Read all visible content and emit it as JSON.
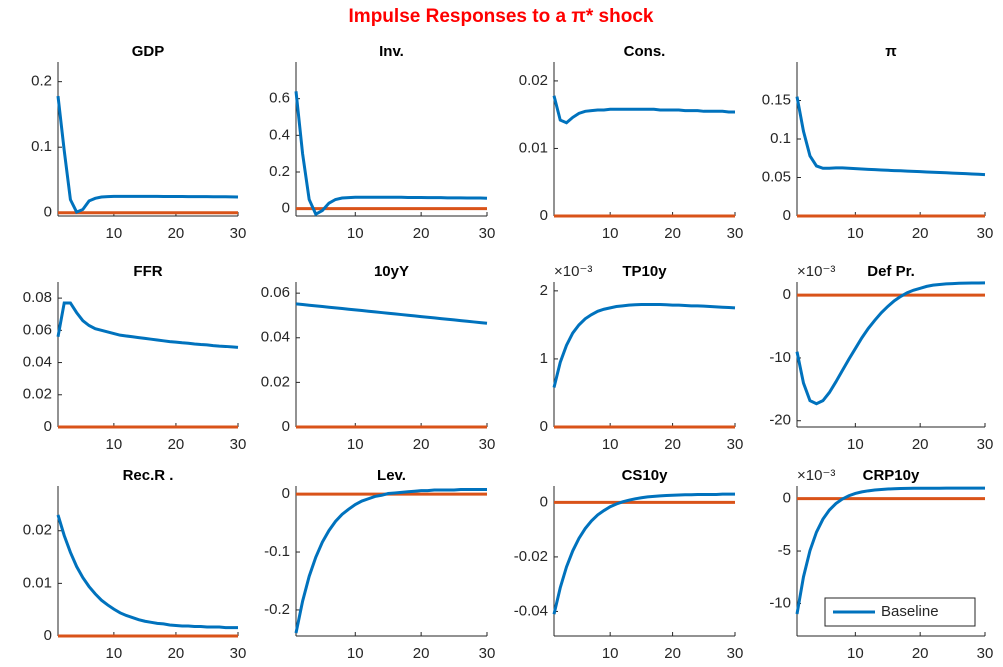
{
  "title": "Impulse Responses to a π* shock",
  "chart_data": [
    {
      "type": "line",
      "title": "GDP",
      "x": [
        1,
        2,
        3,
        4,
        5,
        6,
        7,
        8,
        9,
        10,
        11,
        12,
        13,
        14,
        15,
        16,
        17,
        18,
        19,
        20,
        21,
        22,
        23,
        24,
        25,
        26,
        27,
        28,
        29,
        30
      ],
      "xlim": [
        1,
        30
      ],
      "xticks": [
        10,
        20,
        30
      ],
      "ylim": [
        -0.005,
        0.23
      ],
      "yticks": [
        0,
        0.1,
        0.2
      ],
      "hline": {
        "value": 0,
        "color": "#D95319"
      },
      "series": [
        {
          "color": "#0072BD",
          "values": [
            0.178,
            0.095,
            0.02,
            0.001,
            0.005,
            0.018,
            0.022,
            0.024,
            0.0245,
            0.025,
            0.025,
            0.025,
            0.025,
            0.025,
            0.025,
            0.025,
            0.025,
            0.0248,
            0.0248,
            0.0247,
            0.0247,
            0.0246,
            0.0246,
            0.0245,
            0.0245,
            0.0244,
            0.0244,
            0.0243,
            0.0242,
            0.024
          ]
        }
      ]
    },
    {
      "type": "line",
      "title": "Inv.",
      "x": [
        1,
        2,
        3,
        4,
        5,
        6,
        7,
        8,
        9,
        10,
        11,
        12,
        13,
        14,
        15,
        16,
        17,
        18,
        19,
        20,
        21,
        22,
        23,
        24,
        25,
        26,
        27,
        28,
        29,
        30
      ],
      "xlim": [
        1,
        30
      ],
      "xticks": [
        10,
        20,
        30
      ],
      "ylim": [
        -0.04,
        0.8
      ],
      "yticks": [
        0,
        0.2,
        0.4,
        0.6
      ],
      "hline": {
        "value": 0,
        "color": "#D95319"
      },
      "series": [
        {
          "color": "#0072BD",
          "values": [
            0.64,
            0.3,
            0.05,
            -0.03,
            -0.01,
            0.03,
            0.05,
            0.058,
            0.06,
            0.062,
            0.062,
            0.062,
            0.062,
            0.062,
            0.062,
            0.062,
            0.062,
            0.061,
            0.061,
            0.061,
            0.06,
            0.06,
            0.06,
            0.059,
            0.059,
            0.059,
            0.058,
            0.058,
            0.058,
            0.057
          ]
        }
      ]
    },
    {
      "type": "line",
      "title": "Cons.",
      "x": [
        1,
        2,
        3,
        4,
        5,
        6,
        7,
        8,
        9,
        10,
        11,
        12,
        13,
        14,
        15,
        16,
        17,
        18,
        19,
        20,
        21,
        22,
        23,
        24,
        25,
        26,
        27,
        28,
        29,
        30
      ],
      "xlim": [
        1,
        30
      ],
      "xticks": [
        10,
        20,
        30
      ],
      "ylim": [
        0,
        0.0228
      ],
      "yticks": [
        0,
        0.01,
        0.02
      ],
      "hline": {
        "value": 0,
        "color": "#D95319"
      },
      "series": [
        {
          "color": "#0072BD",
          "values": [
            0.0178,
            0.0142,
            0.0138,
            0.0146,
            0.0152,
            0.0155,
            0.0156,
            0.0157,
            0.0157,
            0.0158,
            0.0158,
            0.0158,
            0.0158,
            0.0158,
            0.0158,
            0.0158,
            0.0158,
            0.0157,
            0.0157,
            0.0157,
            0.0157,
            0.0156,
            0.0156,
            0.0156,
            0.0155,
            0.0155,
            0.0155,
            0.0155,
            0.0154,
            0.0154
          ]
        }
      ]
    },
    {
      "type": "line",
      "title": "π",
      "x": [
        1,
        2,
        3,
        4,
        5,
        6,
        7,
        8,
        9,
        10,
        11,
        12,
        13,
        14,
        15,
        16,
        17,
        18,
        19,
        20,
        21,
        22,
        23,
        24,
        25,
        26,
        27,
        28,
        29,
        30
      ],
      "xlim": [
        1,
        30
      ],
      "xticks": [
        10,
        20,
        30
      ],
      "ylim": [
        0,
        0.2
      ],
      "yticks": [
        0,
        0.05,
        0.1,
        0.15
      ],
      "hline": {
        "value": 0,
        "color": "#D95319"
      },
      "series": [
        {
          "color": "#0072BD",
          "values": [
            0.155,
            0.11,
            0.078,
            0.065,
            0.062,
            0.062,
            0.0625,
            0.0625,
            0.062,
            0.0615,
            0.061,
            0.0606,
            0.0602,
            0.0598,
            0.0594,
            0.059,
            0.0587,
            0.0583,
            0.058,
            0.0576,
            0.0572,
            0.0568,
            0.0565,
            0.0561,
            0.0557,
            0.0553,
            0.055,
            0.0546,
            0.0542,
            0.0538
          ]
        }
      ]
    },
    {
      "type": "line",
      "title": "FFR",
      "x": [
        1,
        2,
        3,
        4,
        5,
        6,
        7,
        8,
        9,
        10,
        11,
        12,
        13,
        14,
        15,
        16,
        17,
        18,
        19,
        20,
        21,
        22,
        23,
        24,
        25,
        26,
        27,
        28,
        29,
        30
      ],
      "xlim": [
        1,
        30
      ],
      "xticks": [
        10,
        20,
        30
      ],
      "ylim": [
        0,
        0.09
      ],
      "yticks": [
        0,
        0.02,
        0.04,
        0.06,
        0.08
      ],
      "hline": {
        "value": 0,
        "color": "#D95319"
      },
      "series": [
        {
          "color": "#0072BD",
          "values": [
            0.056,
            0.077,
            0.077,
            0.071,
            0.066,
            0.063,
            0.061,
            0.06,
            0.059,
            0.058,
            0.057,
            0.0565,
            0.056,
            0.0555,
            0.055,
            0.0545,
            0.054,
            0.0535,
            0.053,
            0.0527,
            0.0523,
            0.052,
            0.0515,
            0.0512,
            0.051,
            0.0505,
            0.0502,
            0.05,
            0.0497,
            0.0494
          ]
        }
      ]
    },
    {
      "type": "line",
      "title": "10yY",
      "x": [
        1,
        2,
        3,
        4,
        5,
        6,
        7,
        8,
        9,
        10,
        11,
        12,
        13,
        14,
        15,
        16,
        17,
        18,
        19,
        20,
        21,
        22,
        23,
        24,
        25,
        26,
        27,
        28,
        29,
        30
      ],
      "xlim": [
        1,
        30
      ],
      "xticks": [
        10,
        20,
        30
      ],
      "ylim": [
        0,
        0.065
      ],
      "yticks": [
        0,
        0.02,
        0.04,
        0.06
      ],
      "hline": {
        "value": 0,
        "color": "#D95319"
      },
      "series": [
        {
          "color": "#0072BD",
          "values": [
            0.0552,
            0.0549,
            0.0546,
            0.0543,
            0.054,
            0.0537,
            0.0534,
            0.0531,
            0.0528,
            0.0525,
            0.0522,
            0.0519,
            0.0516,
            0.0513,
            0.051,
            0.0507,
            0.0504,
            0.0501,
            0.0498,
            0.0495,
            0.0492,
            0.0489,
            0.0486,
            0.0483,
            0.048,
            0.0477,
            0.0474,
            0.0471,
            0.0468,
            0.0465
          ]
        }
      ]
    },
    {
      "type": "line",
      "title": "TP10y",
      "y_multiplier_label": "×10⁻³",
      "x": [
        1,
        2,
        3,
        4,
        5,
        6,
        7,
        8,
        9,
        10,
        11,
        12,
        13,
        14,
        15,
        16,
        17,
        18,
        19,
        20,
        21,
        22,
        23,
        24,
        25,
        26,
        27,
        28,
        29,
        30
      ],
      "xlim": [
        1,
        30
      ],
      "xticks": [
        10,
        20,
        30
      ],
      "ylim": [
        0,
        2.13
      ],
      "yticks": [
        0,
        1,
        2
      ],
      "hline": {
        "value": 0,
        "color": "#D95319"
      },
      "series": [
        {
          "color": "#0072BD",
          "values": [
            0.58,
            0.95,
            1.2,
            1.38,
            1.5,
            1.59,
            1.65,
            1.7,
            1.73,
            1.75,
            1.77,
            1.78,
            1.79,
            1.795,
            1.8,
            1.8,
            1.8,
            1.8,
            1.795,
            1.79,
            1.79,
            1.785,
            1.78,
            1.78,
            1.775,
            1.77,
            1.765,
            1.76,
            1.755,
            1.75
          ]
        }
      ]
    },
    {
      "type": "line",
      "title": "Def Pr.",
      "y_multiplier_label": "×10⁻³",
      "x": [
        1,
        2,
        3,
        4,
        5,
        6,
        7,
        8,
        9,
        10,
        11,
        12,
        13,
        14,
        15,
        16,
        17,
        18,
        19,
        20,
        21,
        22,
        23,
        24,
        25,
        26,
        27,
        28,
        29,
        30
      ],
      "xlim": [
        1,
        30
      ],
      "xticks": [
        10,
        20,
        30
      ],
      "ylim": [
        -21,
        2.1
      ],
      "yticks": [
        -20,
        -10,
        0
      ],
      "hline": {
        "value": 0,
        "color": "#D95319"
      },
      "series": [
        {
          "color": "#0072BD",
          "values": [
            -9,
            -14,
            -16.8,
            -17.3,
            -16.8,
            -15.5,
            -13.8,
            -12,
            -10.2,
            -8.5,
            -6.8,
            -5.3,
            -4,
            -2.8,
            -1.8,
            -0.9,
            -0.2,
            0.4,
            0.8,
            1.1,
            1.4,
            1.6,
            1.7,
            1.8,
            1.85,
            1.9,
            1.92,
            1.94,
            1.95,
            1.96
          ]
        }
      ]
    },
    {
      "type": "line",
      "title": "Rec.R .",
      "x": [
        1,
        2,
        3,
        4,
        5,
        6,
        7,
        8,
        9,
        10,
        11,
        12,
        13,
        14,
        15,
        16,
        17,
        18,
        19,
        20,
        21,
        22,
        23,
        24,
        25,
        26,
        27,
        28,
        29,
        30
      ],
      "xlim": [
        1,
        30
      ],
      "xticks": [
        10,
        20,
        30
      ],
      "ylim": [
        0,
        0.0285
      ],
      "yticks": [
        0,
        0.01,
        0.02
      ],
      "hline": {
        "value": 0,
        "color": "#D95319"
      },
      "series": [
        {
          "color": "#0072BD",
          "values": [
            0.023,
            0.0191,
            0.0159,
            0.0132,
            0.0111,
            0.0094,
            0.008,
            0.0068,
            0.0059,
            0.0051,
            0.0044,
            0.0039,
            0.0035,
            0.0031,
            0.0028,
            0.0026,
            0.0024,
            0.0023,
            0.0021,
            0.002,
            0.0019,
            0.0019,
            0.0018,
            0.0018,
            0.0017,
            0.0017,
            0.0017,
            0.0016,
            0.0016,
            0.0016
          ]
        }
      ]
    },
    {
      "type": "line",
      "title": "Lev.",
      "x": [
        1,
        2,
        3,
        4,
        5,
        6,
        7,
        8,
        9,
        10,
        11,
        12,
        13,
        14,
        15,
        16,
        17,
        18,
        19,
        20,
        21,
        22,
        23,
        24,
        25,
        26,
        27,
        28,
        29,
        30
      ],
      "xlim": [
        1,
        30
      ],
      "xticks": [
        10,
        20,
        30
      ],
      "ylim": [
        -0.245,
        0.014
      ],
      "yticks": [
        -0.2,
        -0.1,
        0
      ],
      "hline": {
        "value": 0,
        "color": "#D95319"
      },
      "series": [
        {
          "color": "#0072BD",
          "values": [
            -0.24,
            -0.185,
            -0.142,
            -0.109,
            -0.083,
            -0.063,
            -0.047,
            -0.035,
            -0.026,
            -0.018,
            -0.012,
            -0.008,
            -0.004,
            -0.002,
            0.001,
            0.002,
            0.003,
            0.004,
            0.005,
            0.006,
            0.006,
            0.007,
            0.007,
            0.007,
            0.007,
            0.008,
            0.008,
            0.008,
            0.008,
            0.008
          ]
        }
      ]
    },
    {
      "type": "line",
      "title": "CS10y",
      "x": [
        1,
        2,
        3,
        4,
        5,
        6,
        7,
        8,
        9,
        10,
        11,
        12,
        13,
        14,
        15,
        16,
        17,
        18,
        19,
        20,
        21,
        22,
        23,
        24,
        25,
        26,
        27,
        28,
        29,
        30
      ],
      "xlim": [
        1,
        30
      ],
      "xticks": [
        10,
        20,
        30
      ],
      "ylim": [
        -0.049,
        0.006
      ],
      "yticks": [
        -0.04,
        -0.02,
        0
      ],
      "hline": {
        "value": 0,
        "color": "#D95319"
      },
      "series": [
        {
          "color": "#0072BD",
          "values": [
            -0.041,
            -0.0313,
            -0.0237,
            -0.0178,
            -0.0132,
            -0.0096,
            -0.0068,
            -0.0046,
            -0.003,
            -0.0016,
            -0.0006,
            0.0002,
            0.0008,
            0.0013,
            0.0017,
            0.002,
            0.0022,
            0.0024,
            0.0025,
            0.0026,
            0.0027,
            0.0028,
            0.0028,
            0.0029,
            0.0029,
            0.0029,
            0.0029,
            0.003,
            0.003,
            0.003
          ]
        }
      ]
    },
    {
      "type": "line",
      "title": "CRP10y",
      "y_multiplier_label": "×10⁻³",
      "x": [
        1,
        2,
        3,
        4,
        5,
        6,
        7,
        8,
        9,
        10,
        11,
        12,
        13,
        14,
        15,
        16,
        17,
        18,
        19,
        20,
        21,
        22,
        23,
        24,
        25,
        26,
        27,
        28,
        29,
        30
      ],
      "xlim": [
        1,
        30
      ],
      "xticks": [
        10,
        20,
        30
      ],
      "ylim": [
        -13.1,
        1.2
      ],
      "yticks": [
        -10,
        -5,
        0
      ],
      "hline": {
        "value": 0,
        "color": "#D95319"
      },
      "legend": "lower right",
      "series": [
        {
          "name": "Baseline",
          "color": "#0072BD",
          "values": [
            -11,
            -7.46,
            -4.96,
            -3.2,
            -1.96,
            -1.09,
            -0.47,
            -0.04,
            0.27,
            0.49,
            0.64,
            0.74,
            0.82,
            0.87,
            0.91,
            0.94,
            0.96,
            0.97,
            0.98,
            0.98,
            0.99,
            0.99,
            0.99,
            1,
            1,
            1,
            1,
            1,
            1,
            1
          ]
        }
      ]
    }
  ]
}
